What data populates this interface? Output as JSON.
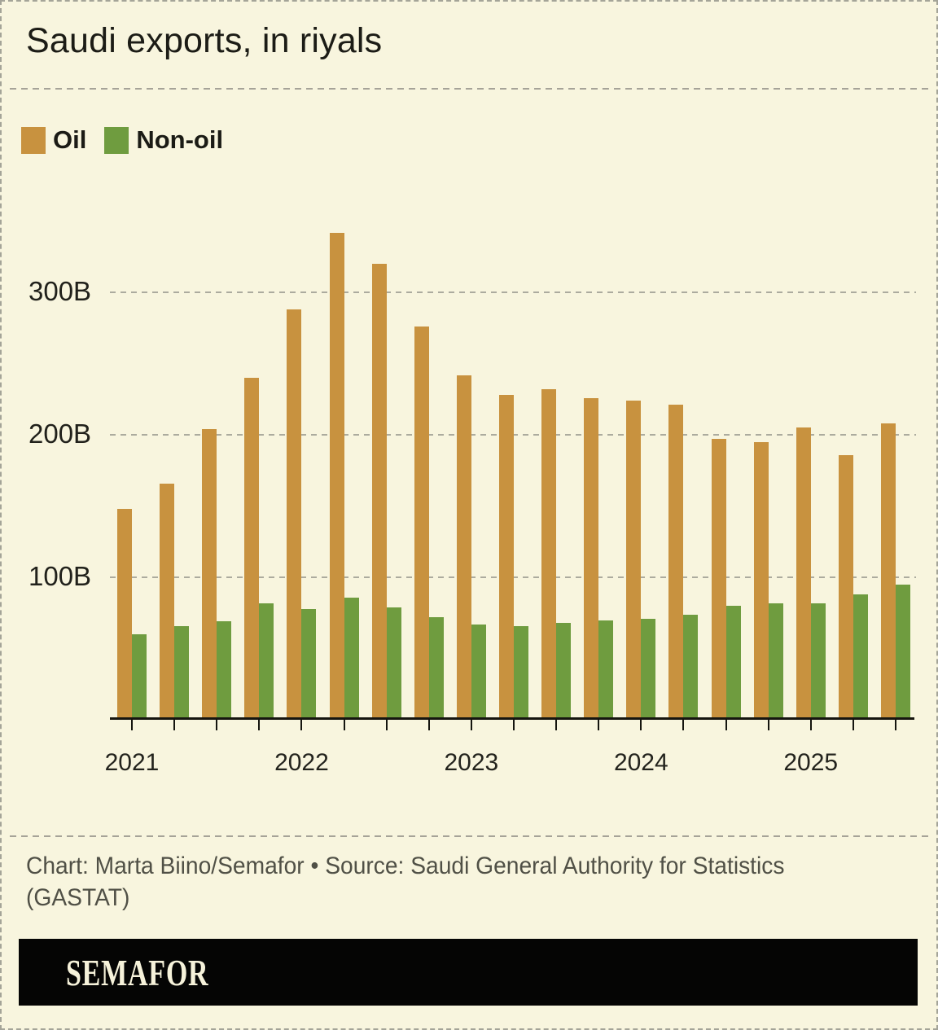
{
  "page": {
    "title": "Saudi exports, in riyals",
    "footer_line1": "Chart: Marta Biino/Semafor • Source: Saudi General Authority for Statistics",
    "footer_line2": "(GASTAT)",
    "logo_text": "SEMAFOR"
  },
  "legend": {
    "items": [
      {
        "label": "Oil",
        "color": "#c8923f"
      },
      {
        "label": "Non-oil",
        "color": "#6f9c3f"
      }
    ]
  },
  "chart_data": {
    "type": "bar",
    "title": "Saudi exports, in riyals",
    "value_unit": "billions of riyals",
    "categories": [
      "2021 Q1",
      "2021 Q2",
      "2021 Q3",
      "2021 Q4",
      "2022 Q1",
      "2022 Q2",
      "2022 Q3",
      "2022 Q4",
      "2023 Q1",
      "2023 Q2",
      "2023 Q3",
      "2023 Q4",
      "2024 Q1",
      "2024 Q2",
      "2024 Q3",
      "2024 Q4",
      "2025 Q1",
      "2025 Q2",
      "2025 Q3"
    ],
    "series": [
      {
        "name": "Oil",
        "color": "#c8923f",
        "values": [
          148,
          166,
          204,
          240,
          288,
          342,
          320,
          276,
          242,
          228,
          232,
          226,
          224,
          221,
          197,
          195,
          205,
          186,
          208
        ]
      },
      {
        "name": "Non-oil",
        "color": "#6f9c3f",
        "values": [
          60,
          66,
          69,
          82,
          78,
          86,
          79,
          72,
          67,
          66,
          68,
          70,
          71,
          74,
          80,
          82,
          82,
          88,
          95
        ]
      }
    ],
    "y_axis": {
      "max": 350,
      "ticks": [
        {
          "value": 100,
          "label": "100B"
        },
        {
          "value": 200,
          "label": "200B"
        },
        {
          "value": 300,
          "label": "300B"
        }
      ]
    },
    "x_axis": {
      "year_labels": [
        {
          "label": "2021",
          "group_index": 0
        },
        {
          "label": "2022",
          "group_index": 4
        },
        {
          "label": "2023",
          "group_index": 8
        },
        {
          "label": "2024",
          "group_index": 12
        },
        {
          "label": "2025",
          "group_index": 16
        }
      ]
    },
    "grid": {
      "orientation": "horizontal",
      "style": "dashed"
    },
    "legend_position": "top-left"
  }
}
